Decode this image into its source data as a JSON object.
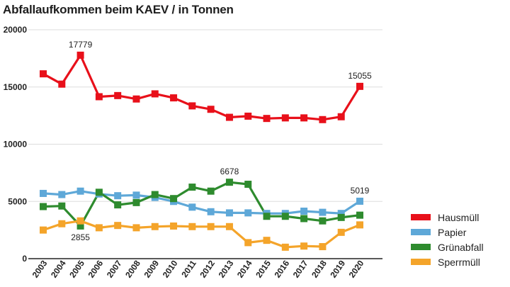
{
  "chart_data": {
    "type": "line",
    "title": "Abfallaufkommen beim KAEV / in Tonnen",
    "xlabel": "",
    "ylabel": "",
    "ylim": [
      0,
      20000
    ],
    "yticks": [
      0,
      5000,
      10000,
      15000,
      20000
    ],
    "categories": [
      "2003",
      "2004",
      "2005",
      "2006",
      "2007",
      "2008",
      "2009",
      "2010",
      "2011",
      "2012",
      "2013",
      "2014",
      "2015",
      "2016",
      "2017",
      "2018",
      "2019",
      "2020"
    ],
    "series": [
      {
        "name": "Hausmüll",
        "color": "#e8101a",
        "values": [
          16150,
          15250,
          17779,
          14150,
          14250,
          13950,
          14400,
          14050,
          13350,
          13050,
          12350,
          12450,
          12250,
          12300,
          12300,
          12150,
          12400,
          15055
        ]
      },
      {
        "name": "Papier",
        "color": "#5ea8d8",
        "values": [
          5700,
          5600,
          5900,
          5650,
          5500,
          5550,
          5350,
          5000,
          4500,
          4100,
          4000,
          4000,
          3950,
          3950,
          4150,
          4050,
          3950,
          5019
        ]
      },
      {
        "name": "Grünabfall",
        "color": "#2e8b2e",
        "values": [
          4550,
          4600,
          2855,
          5800,
          4700,
          4900,
          5600,
          5250,
          6250,
          5900,
          6678,
          6500,
          3700,
          3700,
          3500,
          3300,
          3600,
          3800
        ]
      },
      {
        "name": "Sperrmüll",
        "color": "#f4a42a",
        "values": [
          2500,
          3050,
          3300,
          2700,
          2900,
          2700,
          2800,
          2850,
          2800,
          2800,
          2800,
          1400,
          1600,
          1000,
          1100,
          1050,
          2300,
          2950
        ]
      }
    ],
    "annotations": [
      {
        "text": "17779",
        "series": 0,
        "index": 2,
        "position": "above"
      },
      {
        "text": "15055",
        "series": 0,
        "index": 17,
        "position": "above"
      },
      {
        "text": "6678",
        "series": 2,
        "index": 10,
        "position": "above"
      },
      {
        "text": "5019",
        "series": 1,
        "index": 17,
        "position": "above"
      },
      {
        "text": "2855",
        "series": 2,
        "index": 2,
        "position": "below"
      }
    ],
    "legend_position": "bottom-right"
  }
}
